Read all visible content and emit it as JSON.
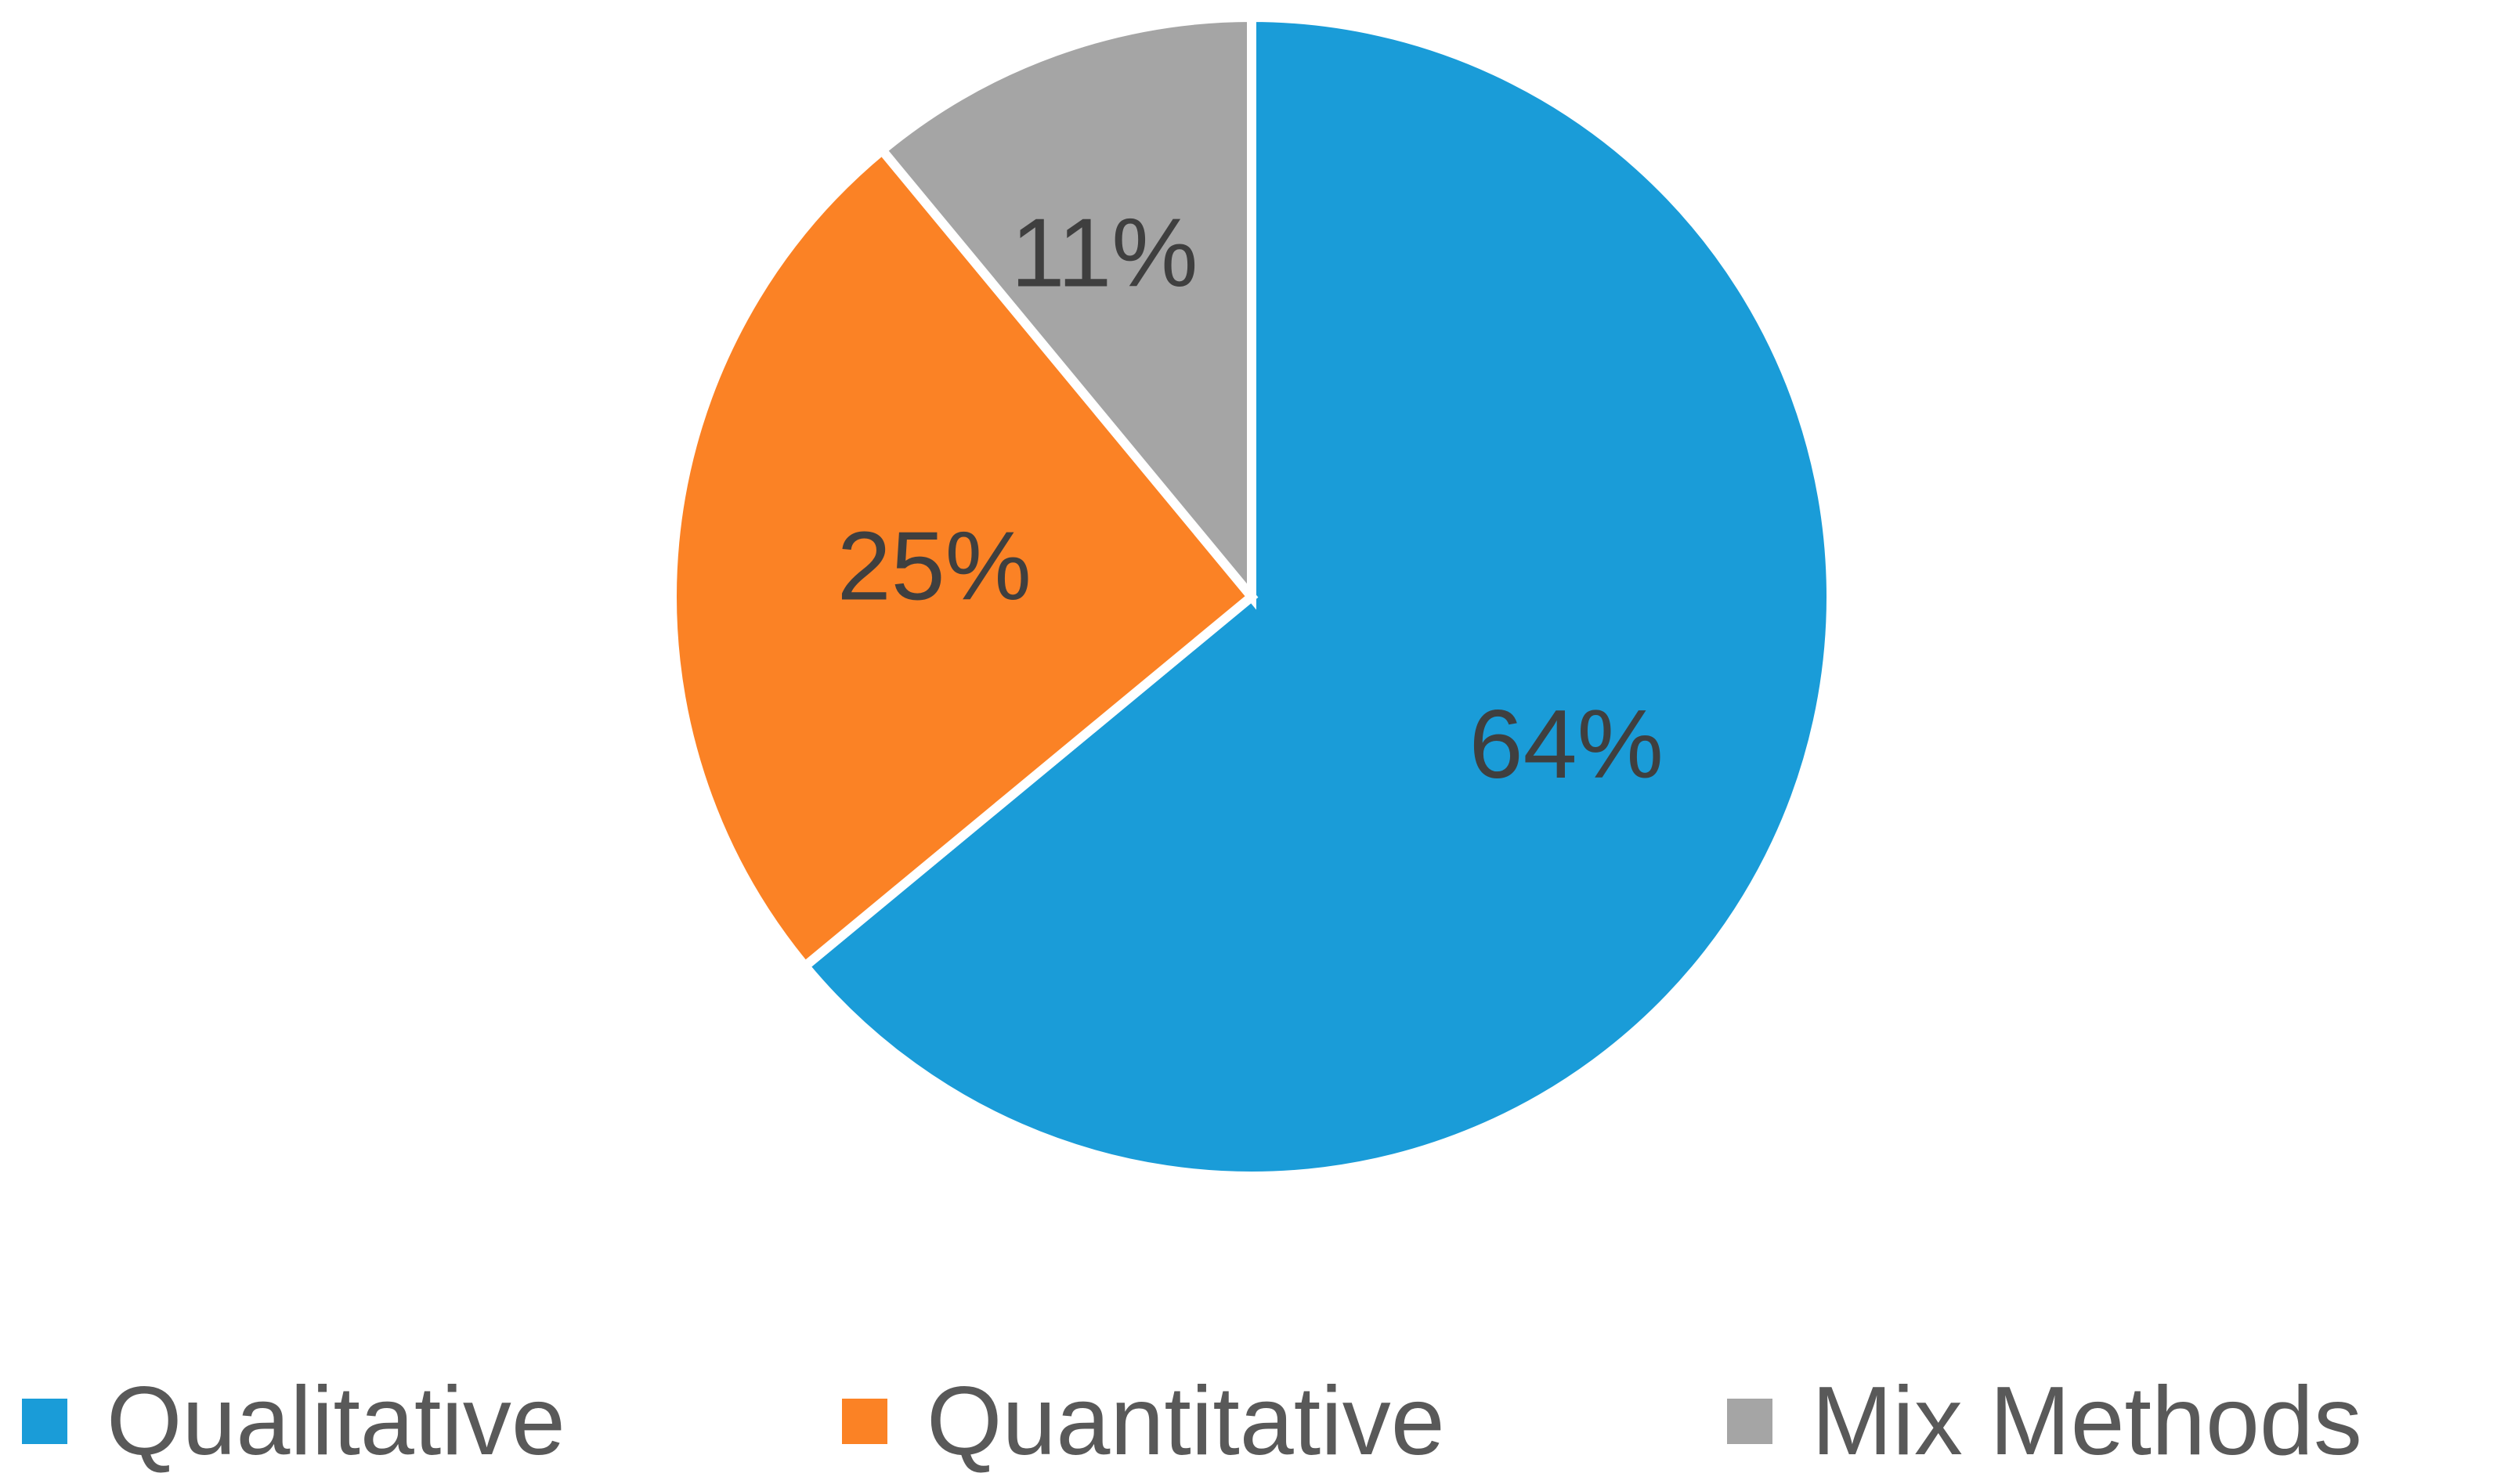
{
  "chart_data": {
    "type": "pie",
    "categories": [
      "Qualitative",
      "Quantitative",
      "Mix Methods"
    ],
    "values": [
      64,
      25,
      11
    ],
    "data_labels": [
      "64%",
      "25%",
      "11%"
    ],
    "colors": [
      "#1a9cd8",
      "#fb8225",
      "#a5a5a5"
    ],
    "legend": {
      "placement": "bottom",
      "entries": [
        "Qualitative",
        "Quantitative",
        "Mix Methods"
      ]
    },
    "start_angle_deg": 0,
    "direction": "clockwise"
  }
}
